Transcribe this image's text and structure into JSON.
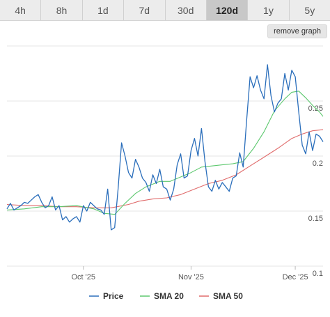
{
  "tabs": [
    {
      "label": "4h",
      "active": false
    },
    {
      "label": "8h",
      "active": false
    },
    {
      "label": "1d",
      "active": false
    },
    {
      "label": "7d",
      "active": false
    },
    {
      "label": "30d",
      "active": false
    },
    {
      "label": "120d",
      "active": true
    },
    {
      "label": "1y",
      "active": false
    },
    {
      "label": "5y",
      "active": false
    }
  ],
  "remove_graph_label": "remove graph",
  "chart_data": {
    "type": "line",
    "x_tick_labels": [
      "Oct '25",
      "Nov '25",
      "Dec '25"
    ],
    "x_tick_days": [
      22,
      53,
      83
    ],
    "y_ticks": [
      0.1,
      0.15,
      0.2,
      0.25
    ],
    "y_tick_labels": [
      "0.1",
      "0.15",
      "0.2",
      "0.25"
    ],
    "ylim": [
      0.1,
      0.3
    ],
    "grid": "horizontal",
    "legend": "bottom-center",
    "series": [
      {
        "name": "Price",
        "color": "#2a6ebb",
        "points": [
          [
            0,
            0.152
          ],
          [
            1,
            0.157
          ],
          [
            2,
            0.151
          ],
          [
            3,
            0.153
          ],
          [
            4,
            0.155
          ],
          [
            5,
            0.158
          ],
          [
            6,
            0.157
          ],
          [
            7,
            0.16
          ],
          [
            8,
            0.163
          ],
          [
            9,
            0.165
          ],
          [
            10,
            0.158
          ],
          [
            11,
            0.153
          ],
          [
            12,
            0.155
          ],
          [
            13,
            0.163
          ],
          [
            14,
            0.151
          ],
          [
            15,
            0.155
          ],
          [
            16,
            0.142
          ],
          [
            17,
            0.145
          ],
          [
            18,
            0.14
          ],
          [
            19,
            0.143
          ],
          [
            20,
            0.145
          ],
          [
            21,
            0.14
          ],
          [
            22,
            0.155
          ],
          [
            23,
            0.15
          ],
          [
            24,
            0.158
          ],
          [
            25,
            0.155
          ],
          [
            26,
            0.152
          ],
          [
            27,
            0.151
          ],
          [
            28,
            0.147
          ],
          [
            29,
            0.17
          ],
          [
            30,
            0.133
          ],
          [
            31,
            0.135
          ],
          [
            32,
            0.17
          ],
          [
            33,
            0.212
          ],
          [
            34,
            0.2
          ],
          [
            35,
            0.185
          ],
          [
            36,
            0.18
          ],
          [
            37,
            0.197
          ],
          [
            38,
            0.19
          ],
          [
            39,
            0.18
          ],
          [
            40,
            0.176
          ],
          [
            41,
            0.168
          ],
          [
            42,
            0.183
          ],
          [
            43,
            0.175
          ],
          [
            44,
            0.188
          ],
          [
            45,
            0.172
          ],
          [
            46,
            0.17
          ],
          [
            47,
            0.16
          ],
          [
            48,
            0.17
          ],
          [
            49,
            0.192
          ],
          [
            50,
            0.202
          ],
          [
            51,
            0.18
          ],
          [
            52,
            0.182
          ],
          [
            53,
            0.205
          ],
          [
            54,
            0.216
          ],
          [
            55,
            0.2
          ],
          [
            56,
            0.225
          ],
          [
            57,
            0.195
          ],
          [
            58,
            0.172
          ],
          [
            59,
            0.168
          ],
          [
            60,
            0.178
          ],
          [
            61,
            0.17
          ],
          [
            62,
            0.176
          ],
          [
            63,
            0.172
          ],
          [
            64,
            0.168
          ],
          [
            65,
            0.18
          ],
          [
            66,
            0.182
          ],
          [
            67,
            0.203
          ],
          [
            68,
            0.19
          ],
          [
            69,
            0.232
          ],
          [
            70,
            0.272
          ],
          [
            71,
            0.262
          ],
          [
            72,
            0.273
          ],
          [
            73,
            0.26
          ],
          [
            74,
            0.252
          ],
          [
            75,
            0.283
          ],
          [
            76,
            0.255
          ],
          [
            77,
            0.24
          ],
          [
            78,
            0.248
          ],
          [
            79,
            0.252
          ],
          [
            80,
            0.275
          ],
          [
            81,
            0.26
          ],
          [
            82,
            0.278
          ],
          [
            83,
            0.272
          ],
          [
            84,
            0.24
          ],
          [
            85,
            0.21
          ],
          [
            86,
            0.202
          ],
          [
            87,
            0.222
          ],
          [
            88,
            0.205
          ],
          [
            89,
            0.22
          ],
          [
            90,
            0.218
          ],
          [
            91,
            0.213
          ]
        ]
      },
      {
        "name": "SMA 20",
        "color": "#5cc86e",
        "points": [
          [
            0,
            0.151
          ],
          [
            5,
            0.152
          ],
          [
            10,
            0.154
          ],
          [
            15,
            0.154
          ],
          [
            20,
            0.155
          ],
          [
            25,
            0.152
          ],
          [
            28,
            0.148
          ],
          [
            31,
            0.147
          ],
          [
            34,
            0.157
          ],
          [
            37,
            0.166
          ],
          [
            40,
            0.172
          ],
          [
            44,
            0.177
          ],
          [
            47,
            0.177
          ],
          [
            50,
            0.181
          ],
          [
            53,
            0.185
          ],
          [
            56,
            0.19
          ],
          [
            59,
            0.191
          ],
          [
            62,
            0.192
          ],
          [
            65,
            0.193
          ],
          [
            68,
            0.195
          ],
          [
            71,
            0.207
          ],
          [
            74,
            0.222
          ],
          [
            77,
            0.241
          ],
          [
            80,
            0.252
          ],
          [
            82,
            0.258
          ],
          [
            84,
            0.259
          ],
          [
            86,
            0.253
          ],
          [
            88,
            0.246
          ],
          [
            90,
            0.24
          ],
          [
            91,
            0.236
          ]
        ]
      },
      {
        "name": "SMA 50",
        "color": "#e06b6b",
        "points": [
          [
            0,
            0.156
          ],
          [
            5,
            0.155
          ],
          [
            10,
            0.155
          ],
          [
            15,
            0.154
          ],
          [
            20,
            0.154
          ],
          [
            25,
            0.153
          ],
          [
            30,
            0.153
          ],
          [
            35,
            0.156
          ],
          [
            38,
            0.159
          ],
          [
            42,
            0.161
          ],
          [
            46,
            0.162
          ],
          [
            50,
            0.165
          ],
          [
            54,
            0.17
          ],
          [
            58,
            0.175
          ],
          [
            62,
            0.178
          ],
          [
            66,
            0.183
          ],
          [
            70,
            0.191
          ],
          [
            74,
            0.199
          ],
          [
            78,
            0.207
          ],
          [
            82,
            0.216
          ],
          [
            85,
            0.22
          ],
          [
            88,
            0.223
          ],
          [
            91,
            0.224
          ]
        ]
      }
    ]
  }
}
